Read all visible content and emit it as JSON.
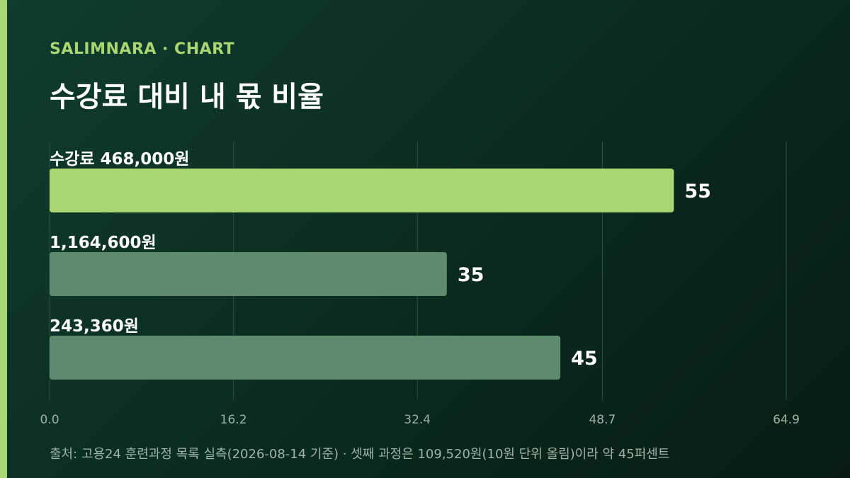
{
  "brand": "SALIMNARA · CHART",
  "title": "수강료 대비 내 몫 비율",
  "footnote": "출처: 고용24 훈련과정 목록 실측(2026-08-14 기준) · 셋째 과정은 109,520원(10원 단위 올림)이라 약 45퍼센트",
  "colors": {
    "background": "#0b2a1f",
    "accent": "#a8d672",
    "bar_highlight": "#a8d672",
    "bar_muted": "#5e8a6e",
    "grid": "#2c5142",
    "tick_text": "#9db3a8"
  },
  "chart_data": {
    "type": "bar",
    "orientation": "horizontal",
    "categories": [
      "수강료 468,000원",
      "1,164,600원",
      "243,360원"
    ],
    "values": [
      55,
      35,
      45
    ],
    "value_labels": [
      "55",
      "35",
      "45"
    ],
    "highlight_index": 0,
    "xlim": [
      0,
      64.9
    ],
    "xticks": [
      "0.0",
      "16.2",
      "32.4",
      "48.7",
      "64.9"
    ],
    "grid": true,
    "title": "수강료 대비 내 몫 비율",
    "xlabel": "",
    "ylabel": ""
  }
}
